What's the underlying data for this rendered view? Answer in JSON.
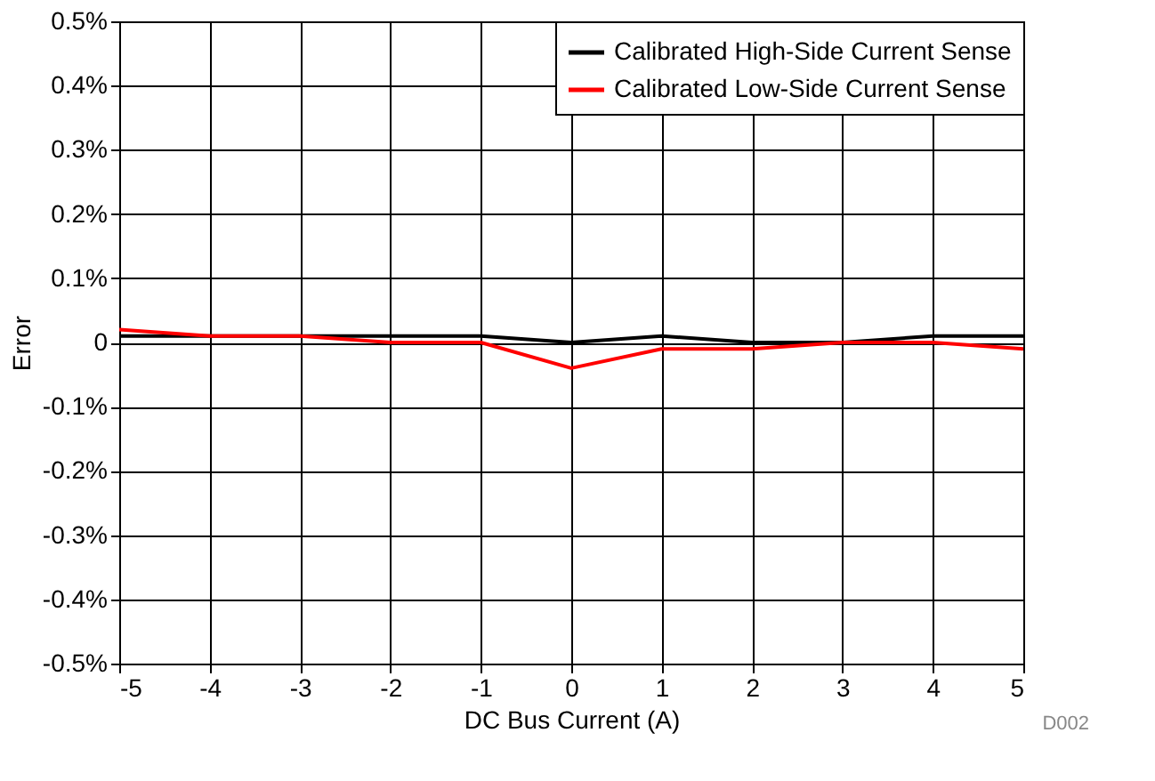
{
  "chart_data": {
    "type": "line",
    "xlabel": "DC Bus Current (A)",
    "ylabel": "Error",
    "x": [
      -5,
      -4,
      -3,
      -2,
      -1,
      0,
      1,
      2,
      3,
      4,
      5
    ],
    "series": [
      {
        "name": "Calibrated High-Side Current Sense",
        "color": "#000000",
        "values": [
          0.01,
          0.01,
          0.01,
          0.01,
          0.01,
          0,
          0.01,
          0,
          0,
          0.01,
          0.01
        ]
      },
      {
        "name": "Calibrated Low-Side Current Sense",
        "color": "#ff0000",
        "values": [
          0.02,
          0.01,
          0.01,
          0,
          0,
          -0.04,
          -0.01,
          -0.01,
          0,
          0,
          -0.01
        ]
      }
    ],
    "xlim": [
      -5,
      5
    ],
    "xticks": [
      -5,
      -4,
      -3,
      -2,
      -1,
      0,
      1,
      2,
      3,
      4,
      5
    ],
    "ylim": [
      -0.5,
      0.5
    ],
    "yticks": [
      {
        "value": -0.5,
        "label": "-0.5%"
      },
      {
        "value": -0.4,
        "label": "-0.4%"
      },
      {
        "value": -0.3,
        "label": "-0.3%"
      },
      {
        "value": -0.2,
        "label": "-0.2%"
      },
      {
        "value": -0.1,
        "label": "-0.1%"
      },
      {
        "value": 0,
        "label": "0"
      },
      {
        "value": 0.1,
        "label": "0.1%"
      },
      {
        "value": 0.2,
        "label": "0.2%"
      },
      {
        "value": 0.3,
        "label": "0.3%"
      },
      {
        "value": 0.4,
        "label": "0.4%"
      },
      {
        "value": 0.5,
        "label": "0.5%"
      }
    ],
    "grid": true,
    "legend": "top right",
    "marker": "none",
    "line_style": "solid",
    "annotations": [
      "D002"
    ]
  }
}
